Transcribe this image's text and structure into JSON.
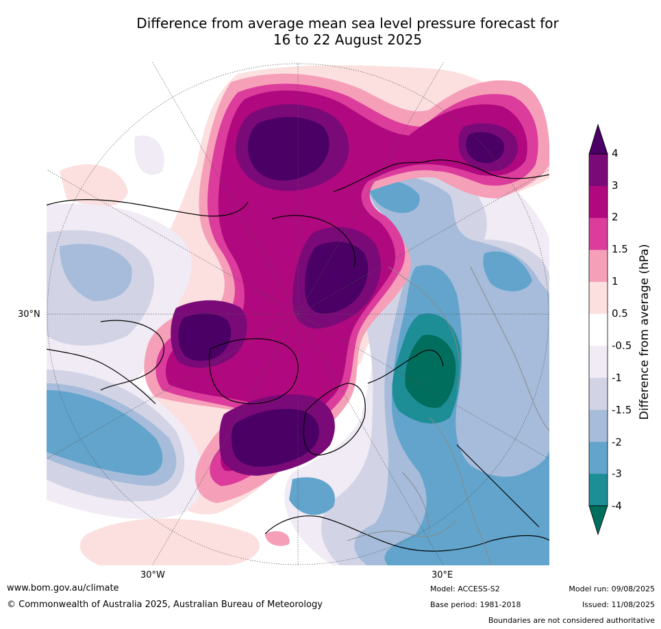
{
  "title_line1": "Difference from average mean sea level pressure forecast for",
  "title_line2": "16 to 22 August 2025",
  "map": {
    "projection": "polar-stereographic",
    "lon_labels": [
      "30°W",
      "30°E"
    ],
    "lat_labels": [
      "30°N"
    ],
    "colors": {
      "land_line": "#000000",
      "border_line": "#888888",
      "graticule": "#555555"
    }
  },
  "colorbar": {
    "label": "Difference from average (hPa)",
    "ticks": [
      "4",
      "3",
      "2",
      "1.5",
      "1",
      "0.5",
      "-0.5",
      "-1",
      "-1.5",
      "-2",
      "-3",
      "-4"
    ],
    "levels": [
      {
        "range": "above 4",
        "color": "#4a0064"
      },
      {
        "range": "3 to 4",
        "color": "#7a0a78"
      },
      {
        "range": "2 to 3",
        "color": "#b0087e"
      },
      {
        "range": "1.5 to 2",
        "color": "#dc3c9c"
      },
      {
        "range": "1 to 1.5",
        "color": "#f5a0b8"
      },
      {
        "range": "0.5 to 1",
        "color": "#fce0e0"
      },
      {
        "range": "-0.5 to 0.5",
        "color": "#ffffff"
      },
      {
        "range": "-1 to -0.5",
        "color": "#f0ebf4"
      },
      {
        "range": "-1.5 to -1",
        "color": "#d2d4e6"
      },
      {
        "range": "-2 to -1.5",
        "color": "#a6bcda"
      },
      {
        "range": "-3 to -2",
        "color": "#62a4cc"
      },
      {
        "range": "-4 to -3",
        "color": "#1e8e96"
      },
      {
        "range": "below -4",
        "color": "#006e5c"
      }
    ]
  },
  "footer": {
    "website": "www.bom.gov.au/climate",
    "copyright": "© Commonwealth of Australia 2025, Australian Bureau of Meteorology",
    "model": "Model: ACCESS-S2",
    "base_period": "Base period: 1981-2018",
    "model_run": "Model run: 09/08/2025",
    "issued": "Issued: 11/08/2025",
    "disclaimer": "Boundaries are not considered authoritative"
  }
}
